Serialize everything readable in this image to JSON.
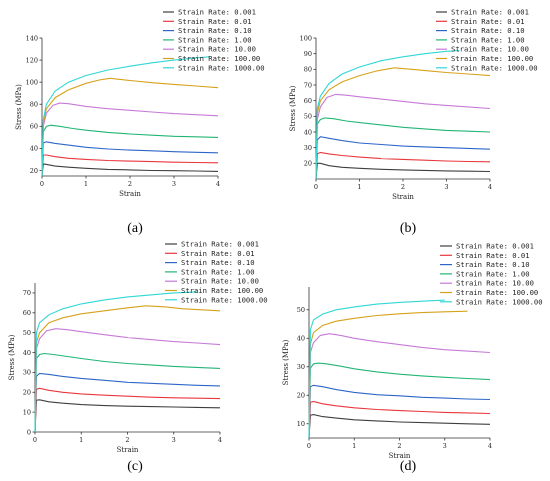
{
  "chart_data": [
    {
      "type": "line",
      "caption": "(a)",
      "xlabel": "Strain",
      "ylabel": "Stress (MPa)",
      "xlim": [
        0,
        4
      ],
      "ylim": [
        15,
        140
      ],
      "xticks": [
        "0",
        "1",
        "2",
        "3",
        "4"
      ],
      "yticks": [
        20,
        40,
        60,
        80,
        100,
        120,
        140
      ],
      "legend_position": "top-right",
      "series": [
        {
          "name": "Strain Rate: 0.001",
          "x": [
            0,
            0.03,
            0.1,
            0.3,
            0.6,
            1,
            1.5,
            2,
            2.5,
            3,
            3.5,
            4
          ],
          "y": [
            15,
            26,
            25.5,
            24,
            23,
            22,
            21,
            20.5,
            20,
            19.8,
            19.5,
            19.2
          ]
        },
        {
          "name": "Strain Rate: 0.01",
          "x": [
            0,
            0.03,
            0.1,
            0.3,
            0.6,
            1,
            1.5,
            2,
            2.5,
            3,
            3.5,
            4
          ],
          "y": [
            15,
            34,
            34,
            32.5,
            31,
            30,
            29,
            28.5,
            28,
            27.5,
            27.2,
            27
          ]
        },
        {
          "name": "Strain Rate: 0.10",
          "x": [
            0,
            0.03,
            0.1,
            0.3,
            0.6,
            1,
            1.5,
            2,
            2.5,
            3,
            3.5,
            4
          ],
          "y": [
            15,
            45,
            46,
            44.5,
            43,
            41,
            39.5,
            38.5,
            37.8,
            37,
            36.5,
            36
          ]
        },
        {
          "name": "Strain Rate: 1.00",
          "x": [
            0,
            0.03,
            0.1,
            0.2,
            0.4,
            0.7,
            1,
            1.5,
            2,
            2.5,
            3,
            3.5,
            4
          ],
          "y": [
            15,
            55,
            60,
            61,
            60,
            58,
            56.5,
            54.5,
            53,
            52,
            51,
            50.5,
            50
          ]
        },
        {
          "name": "Strain Rate: 10.00",
          "x": [
            0,
            0.03,
            0.1,
            0.25,
            0.4,
            0.6,
            1,
            1.5,
            2,
            2.5,
            3,
            3.5,
            4
          ],
          "y": [
            15,
            60,
            72,
            79,
            81,
            80.5,
            78,
            76,
            74.5,
            73,
            71.5,
            70.5,
            69.5
          ]
        },
        {
          "name": "Strain Rate: 100.00",
          "x": [
            0,
            0.03,
            0.1,
            0.3,
            0.6,
            1,
            1.3,
            1.55,
            2,
            2.5,
            3,
            3.5,
            4
          ],
          "y": [
            15,
            63,
            76,
            86,
            93,
            99,
            102,
            103.5,
            101.5,
            99.5,
            98,
            96.5,
            95
          ]
        },
        {
          "name": "Strain Rate: 1000.00",
          "x": [
            0,
            0.03,
            0.1,
            0.3,
            0.6,
            1,
            1.5,
            2,
            2.5,
            3,
            3.5,
            3.8
          ],
          "y": [
            15,
            66,
            80,
            92,
            100,
            106,
            111,
            114.5,
            117.5,
            120,
            122,
            123
          ]
        }
      ]
    },
    {
      "type": "line",
      "caption": "(b)",
      "xlabel": "Strain",
      "ylabel": "Stress (MPa)",
      "xlim": [
        0,
        4
      ],
      "ylim": [
        10,
        100
      ],
      "xticks": [
        "0",
        "1",
        "2",
        "3",
        "4"
      ],
      "yticks": [
        20,
        30,
        40,
        50,
        60,
        70,
        80,
        90,
        100
      ],
      "legend_position": "top-right",
      "series": [
        {
          "name": "Strain Rate: 0.001",
          "x": [
            0,
            0.03,
            0.1,
            0.3,
            0.6,
            1,
            1.5,
            2,
            2.5,
            3,
            3.5,
            4
          ],
          "y": [
            10,
            20,
            20,
            18.5,
            17.5,
            16.8,
            16.2,
            15.8,
            15.5,
            15.2,
            15,
            14.8
          ]
        },
        {
          "name": "Strain Rate: 0.01",
          "x": [
            0,
            0.03,
            0.1,
            0.3,
            0.6,
            1,
            1.5,
            2,
            2.5,
            3,
            3.5,
            4
          ],
          "y": [
            10,
            26,
            27,
            26,
            25,
            24,
            23,
            22.5,
            22,
            21.5,
            21.2,
            21
          ]
        },
        {
          "name": "Strain Rate: 0.10",
          "x": [
            0,
            0.03,
            0.1,
            0.3,
            0.6,
            1,
            1.5,
            2,
            2.5,
            3,
            3.5,
            4
          ],
          "y": [
            10,
            35,
            37,
            36,
            34.5,
            33,
            32,
            31,
            30.5,
            30,
            29.5,
            29
          ]
        },
        {
          "name": "Strain Rate: 1.00",
          "x": [
            0,
            0.03,
            0.1,
            0.2,
            0.4,
            0.7,
            1,
            1.5,
            2,
            2.5,
            3,
            3.5,
            4
          ],
          "y": [
            10,
            45,
            48,
            49,
            48.5,
            47,
            46,
            44.5,
            43,
            42,
            41,
            40.5,
            40
          ]
        },
        {
          "name": "Strain Rate: 10.00",
          "x": [
            0,
            0.03,
            0.1,
            0.25,
            0.45,
            0.7,
            1,
            1.5,
            2,
            2.5,
            3,
            3.5,
            4
          ],
          "y": [
            10,
            48,
            56,
            62,
            64,
            63.5,
            62.5,
            61,
            59.5,
            58,
            57,
            56,
            55
          ]
        },
        {
          "name": "Strain Rate: 100.00",
          "x": [
            0,
            0.03,
            0.1,
            0.3,
            0.6,
            1,
            1.4,
            1.8,
            2.2,
            2.6,
            3,
            3.5,
            4
          ],
          "y": [
            10,
            52,
            60,
            67,
            72,
            76,
            79,
            81,
            80,
            79,
            78,
            77,
            76
          ]
        },
        {
          "name": "Strain Rate: 1000.00",
          "x": [
            0,
            0.03,
            0.1,
            0.3,
            0.6,
            1,
            1.5,
            2,
            2.5,
            3,
            3.3
          ],
          "y": [
            10,
            55,
            63,
            71,
            77,
            81.5,
            85.5,
            88,
            90,
            91.5,
            92
          ]
        }
      ]
    },
    {
      "type": "line",
      "caption": "(c)",
      "xlabel": "Strain",
      "ylabel": "Stress (MPa)",
      "xlim": [
        0,
        4
      ],
      "ylim": [
        0,
        75
      ],
      "xticks": [
        "0",
        "1",
        "2",
        "3",
        "4"
      ],
      "yticks": [
        0,
        10,
        20,
        30,
        40,
        50,
        60,
        70
      ],
      "legend_position": "top-right",
      "series": [
        {
          "name": "Strain Rate: 0.001",
          "x": [
            0,
            0.03,
            0.1,
            0.3,
            0.6,
            1,
            1.5,
            2,
            2.5,
            3,
            3.5,
            4
          ],
          "y": [
            0,
            16,
            16.2,
            15.2,
            14.5,
            13.8,
            13.3,
            13,
            12.8,
            12.6,
            12.4,
            12.2
          ]
        },
        {
          "name": "Strain Rate: 0.01",
          "x": [
            0,
            0.03,
            0.1,
            0.3,
            0.6,
            1,
            1.5,
            2,
            2.5,
            3,
            3.5,
            4
          ],
          "y": [
            0,
            21.5,
            22,
            21,
            20,
            19.2,
            18.5,
            18,
            17.5,
            17.2,
            17,
            16.8
          ]
        },
        {
          "name": "Strain Rate: 0.10",
          "x": [
            0,
            0.03,
            0.1,
            0.3,
            0.6,
            1,
            1.5,
            2,
            2.5,
            3,
            3.5,
            4
          ],
          "y": [
            0,
            28,
            29.5,
            29,
            28,
            27,
            26,
            25,
            24.5,
            24,
            23.5,
            23.2
          ]
        },
        {
          "name": "Strain Rate: 1.00",
          "x": [
            0,
            0.03,
            0.1,
            0.2,
            0.4,
            0.7,
            1,
            1.5,
            2,
            2.5,
            3,
            3.5,
            4
          ],
          "y": [
            0,
            37,
            39,
            39.5,
            39,
            38,
            37,
            35.5,
            34.5,
            33.8,
            33,
            32.5,
            32
          ]
        },
        {
          "name": "Strain Rate: 10.00",
          "x": [
            0,
            0.03,
            0.1,
            0.25,
            0.45,
            0.7,
            1,
            1.5,
            2,
            2.5,
            3,
            3.5,
            4
          ],
          "y": [
            0,
            42,
            47,
            51,
            52,
            51.5,
            50.5,
            49,
            47.5,
            46.5,
            45.5,
            44.8,
            44
          ]
        },
        {
          "name": "Strain Rate: 100.00",
          "x": [
            0,
            0.03,
            0.1,
            0.3,
            0.6,
            1,
            1.5,
            2,
            2.4,
            2.8,
            3.2,
            3.6,
            4
          ],
          "y": [
            0,
            45,
            50,
            55,
            57.5,
            59.5,
            61,
            62.5,
            63.5,
            63,
            62,
            61.5,
            61
          ]
        },
        {
          "name": "Strain Rate: 1000.00",
          "x": [
            0,
            0.03,
            0.1,
            0.3,
            0.6,
            1,
            1.5,
            2,
            2.5,
            3,
            3.5
          ],
          "y": [
            0,
            50,
            55,
            59,
            62,
            64.5,
            66.5,
            68,
            69,
            70,
            70.5
          ]
        }
      ]
    },
    {
      "type": "line",
      "caption": "(d)",
      "xlabel": "Strain",
      "ylabel": "Stress (MPa)",
      "xlim": [
        0,
        4
      ],
      "ylim": [
        5,
        58
      ],
      "xticks": [
        "0",
        "1",
        "2",
        "3",
        "4"
      ],
      "yticks": [
        10,
        20,
        30,
        40,
        50
      ],
      "legend_position": "top-right",
      "series": [
        {
          "name": "Strain Rate: 0.001",
          "x": [
            0,
            0.03,
            0.1,
            0.3,
            0.6,
            1,
            1.5,
            2,
            2.5,
            3,
            3.5,
            4
          ],
          "y": [
            5,
            13,
            13.2,
            12.5,
            12,
            11.4,
            11,
            10.6,
            10.4,
            10.2,
            10,
            9.8
          ]
        },
        {
          "name": "Strain Rate: 0.01",
          "x": [
            0,
            0.03,
            0.1,
            0.3,
            0.6,
            1,
            1.5,
            2,
            2.5,
            3,
            3.5,
            4
          ],
          "y": [
            5,
            17.5,
            17.8,
            17,
            16.3,
            15.6,
            15,
            14.6,
            14.3,
            14,
            13.8,
            13.6
          ]
        },
        {
          "name": "Strain Rate: 0.10",
          "x": [
            0,
            0.03,
            0.1,
            0.3,
            0.6,
            1,
            1.5,
            2,
            2.5,
            3,
            3.5,
            4
          ],
          "y": [
            5,
            23,
            23.5,
            23,
            22,
            21,
            20.2,
            19.8,
            19.3,
            19,
            18.7,
            18.5
          ]
        },
        {
          "name": "Strain Rate: 1.00",
          "x": [
            0,
            0.03,
            0.1,
            0.2,
            0.4,
            0.7,
            1,
            1.5,
            2,
            2.5,
            3,
            3.5,
            4
          ],
          "y": [
            5,
            29.5,
            31,
            31.3,
            31,
            30.2,
            29.3,
            28.2,
            27.4,
            26.8,
            26.3,
            25.9,
            25.5
          ]
        },
        {
          "name": "Strain Rate: 10.00",
          "x": [
            0,
            0.03,
            0.1,
            0.25,
            0.45,
            0.7,
            1,
            1.5,
            2,
            2.5,
            3,
            3.5,
            4
          ],
          "y": [
            5,
            35,
            38.5,
            41,
            41.6,
            41,
            40,
            38.8,
            37.8,
            36.8,
            36,
            35.5,
            35
          ]
        },
        {
          "name": "Strain Rate: 100.00",
          "x": [
            0,
            0.03,
            0.1,
            0.3,
            0.6,
            1,
            1.5,
            2,
            2.5,
            3,
            3.5
          ],
          "y": [
            5,
            38,
            42,
            44.5,
            46,
            47,
            48,
            48.6,
            49,
            49.3,
            49.5
          ]
        },
        {
          "name": "Strain Rate: 1000.00",
          "x": [
            0,
            0.03,
            0.1,
            0.3,
            0.6,
            1,
            1.5,
            2,
            2.5,
            3
          ],
          "y": [
            5,
            43,
            46.5,
            48.5,
            50,
            51,
            52,
            52.6,
            53,
            53.4
          ]
        }
      ]
    }
  ],
  "colors": [
    "#3f3f3f",
    "#e8373d",
    "#2e66c8",
    "#23b574",
    "#c77ad8",
    "#d6a21a",
    "#30d7d5"
  ]
}
